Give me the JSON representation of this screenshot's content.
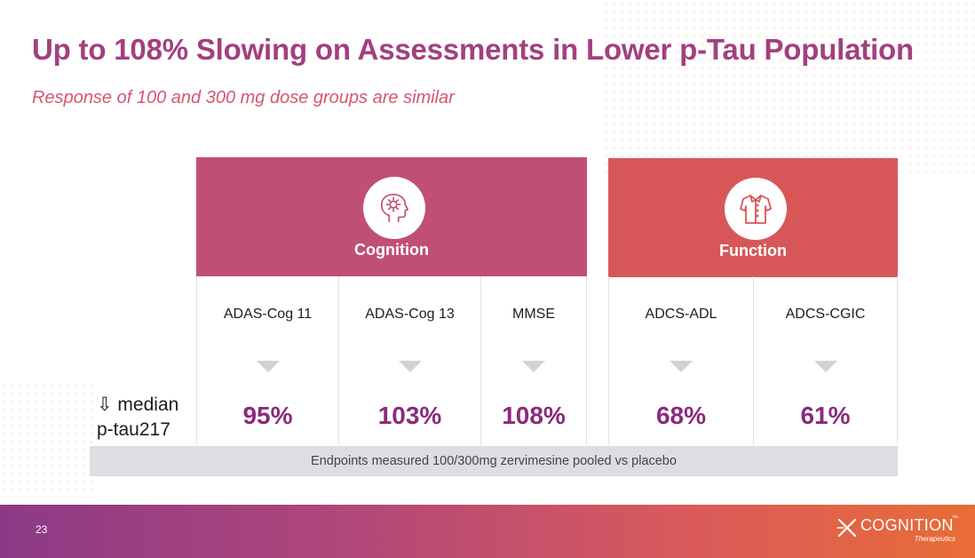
{
  "slide": {
    "title": "Up to 108% Slowing on Assessments in Lower p-Tau Population",
    "subtitle": "Response of 100 and 300 mg dose groups are similar"
  },
  "cognition": {
    "label": "Cognition",
    "icon": "brain-gear-icon",
    "color": "#c04f77",
    "metrics": [
      {
        "name": "ADAS-Cog 11",
        "value": "95%"
      },
      {
        "name": "ADAS-Cog 13",
        "value": "103%"
      },
      {
        "name": "MMSE",
        "value": "108%"
      }
    ]
  },
  "function": {
    "label": "Function",
    "icon": "shirt-icon",
    "color": "#d75758",
    "metrics": [
      {
        "name": "ADCS-ADL",
        "value": "68%"
      },
      {
        "name": "ADCS-CGIC",
        "value": "61%"
      }
    ]
  },
  "row_label": {
    "line1": "⇩ median",
    "line2": "p-tau217"
  },
  "footnote": "Endpoints measured 100/300mg zervimesine pooled vs placebo",
  "footer": {
    "page_number": "23",
    "logo_text": "COGNITION",
    "logo_tm": "™",
    "logo_subtext": "Therapeutics",
    "gradient_start": "#8c3a86",
    "gradient_end": "#e96c36"
  }
}
